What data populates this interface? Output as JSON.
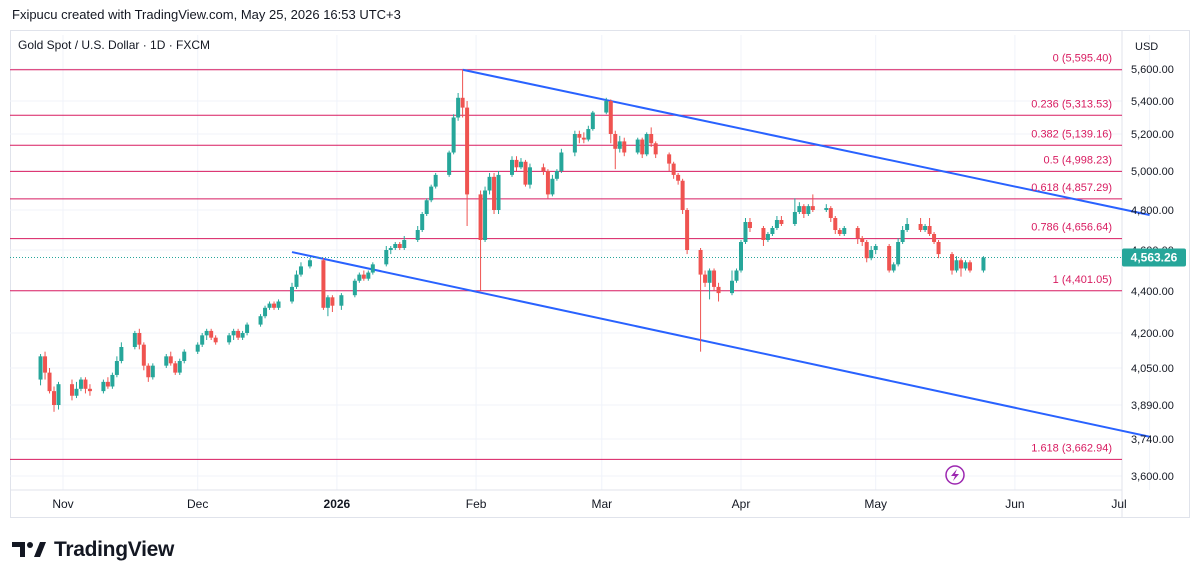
{
  "header": {
    "credit": "Fxipucu created with TradingView.com, May 25, 2026 16:53 UTC+3"
  },
  "footer": {
    "brand": "TradingView"
  },
  "colors": {
    "up": "#26a69a",
    "down": "#ef5350",
    "fib": "#d81b60",
    "trendline": "#2962ff",
    "grid": "#f0f3fa",
    "axis_text": "#131722",
    "price_badge": "#26a69a",
    "lightning": "#9c27b0"
  },
  "chart_data": {
    "type": "candlestick",
    "title": "Gold Spot / U.S. Dollar · 1D · FXCM",
    "currency": "USD",
    "last_price": "4,563.26",
    "x_ticks": [
      "Nov",
      "Dec",
      "2026",
      "Feb",
      "Mar",
      "Apr",
      "May",
      "Jun",
      "Jul"
    ],
    "y_ticks": [
      "5,600.00",
      "5,400.00",
      "5,200.00",
      "5,000.00",
      "4,800.00",
      "4,600.00",
      "4,400.00",
      "4,200.00",
      "4,050.00",
      "3,890.00",
      "3,740.00",
      "3,600.00"
    ],
    "fib_levels": [
      {
        "label": "0 (5,595.40)",
        "value": 5595.4
      },
      {
        "label": "0.236 (5,313.53)",
        "value": 5313.53
      },
      {
        "label": "0.382 (5,139.16)",
        "value": 5139.16
      },
      {
        "label": "0.5 (4,998.23)",
        "value": 4998.23
      },
      {
        "label": "0.618 (4,857.29)",
        "value": 4857.29
      },
      {
        "label": "0.786 (4,656.64)",
        "value": 4656.64
      },
      {
        "label": "1 (4,401.05)",
        "value": 4401.05
      },
      {
        "label": "1.618 (3,662.94)",
        "value": 3662.94
      }
    ],
    "trendlines": [
      {
        "name": "upper",
        "from": [
          "2026-01-29",
          5595.4
        ],
        "to": [
          "2026-07-01",
          4775
        ]
      },
      {
        "name": "lower",
        "from": [
          "2025-12-22",
          4590
        ],
        "to": [
          "2026-07-01",
          3750
        ]
      }
    ],
    "candles": [
      [
        "2025-10-27",
        4000,
        4100,
        3975,
        4110
      ],
      [
        "2025-10-28",
        4100,
        4030,
        4000,
        4120
      ],
      [
        "2025-10-29",
        4030,
        3950,
        3940,
        4050
      ],
      [
        "2025-10-30",
        3950,
        3890,
        3860,
        3970
      ],
      [
        "2025-10-31",
        3890,
        3980,
        3870,
        3990
      ],
      [
        "2025-11-03",
        3980,
        3930,
        3910,
        4000
      ],
      [
        "2025-11-04",
        3930,
        3960,
        3920,
        3990
      ],
      [
        "2025-11-05",
        3960,
        4000,
        3950,
        4010
      ],
      [
        "2025-11-06",
        4000,
        3960,
        3940,
        4010
      ],
      [
        "2025-11-07",
        3960,
        3950,
        3930,
        3980
      ],
      [
        "2025-11-10",
        3950,
        3990,
        3940,
        4000
      ],
      [
        "2025-11-11",
        3990,
        3970,
        3960,
        4010
      ],
      [
        "2025-11-12",
        3970,
        4020,
        3960,
        4030
      ],
      [
        "2025-11-13",
        4020,
        4080,
        4010,
        4100
      ],
      [
        "2025-11-14",
        4080,
        4140,
        4070,
        4160
      ],
      [
        "2025-11-17",
        4140,
        4200,
        4130,
        4210
      ],
      [
        "2025-11-18",
        4200,
        4150,
        4130,
        4220
      ],
      [
        "2025-11-19",
        4150,
        4060,
        4040,
        4160
      ],
      [
        "2025-11-20",
        4060,
        4010,
        3990,
        4070
      ],
      [
        "2025-11-21",
        4010,
        4060,
        4000,
        4070
      ],
      [
        "2025-11-24",
        4060,
        4100,
        4050,
        4110
      ],
      [
        "2025-11-25",
        4100,
        4070,
        4060,
        4120
      ],
      [
        "2025-11-26",
        4070,
        4030,
        4020,
        4080
      ],
      [
        "2025-11-27",
        4030,
        4080,
        4020,
        4090
      ],
      [
        "2025-11-28",
        4080,
        4120,
        4070,
        4130
      ],
      [
        "2025-12-01",
        4120,
        4150,
        4110,
        4160
      ],
      [
        "2025-12-02",
        4150,
        4190,
        4140,
        4200
      ],
      [
        "2025-12-03",
        4190,
        4210,
        4170,
        4220
      ],
      [
        "2025-12-04",
        4210,
        4180,
        4170,
        4220
      ],
      [
        "2025-12-05",
        4180,
        4160,
        4150,
        4190
      ],
      [
        "2025-12-08",
        4160,
        4190,
        4150,
        4200
      ],
      [
        "2025-12-09",
        4190,
        4210,
        4170,
        4220
      ],
      [
        "2025-12-10",
        4210,
        4180,
        4170,
        4220
      ],
      [
        "2025-12-11",
        4180,
        4200,
        4170,
        4210
      ],
      [
        "2025-12-12",
        4200,
        4240,
        4190,
        4250
      ],
      [
        "2025-12-15",
        4240,
        4280,
        4230,
        4290
      ],
      [
        "2025-12-16",
        4280,
        4320,
        4270,
        4330
      ],
      [
        "2025-12-17",
        4320,
        4340,
        4310,
        4350
      ],
      [
        "2025-12-18",
        4340,
        4320,
        4310,
        4350
      ],
      [
        "2025-12-19",
        4320,
        4350,
        4310,
        4360
      ],
      [
        "2025-12-22",
        4350,
        4420,
        4340,
        4440
      ],
      [
        "2025-12-23",
        4420,
        4480,
        4410,
        4500
      ],
      [
        "2025-12-24",
        4480,
        4520,
        4470,
        4540
      ],
      [
        "2025-12-26",
        4520,
        4550,
        4510,
        4560
      ],
      [
        "2025-12-29",
        4550,
        4320,
        4310,
        4560
      ],
      [
        "2025-12-30",
        4320,
        4370,
        4280,
        4380
      ],
      [
        "2025-12-31",
        4370,
        4330,
        4300,
        4380
      ],
      [
        "2026-01-02",
        4330,
        4380,
        4310,
        4390
      ],
      [
        "2026-01-05",
        4380,
        4450,
        4370,
        4460
      ],
      [
        "2026-01-06",
        4450,
        4480,
        4440,
        4490
      ],
      [
        "2026-01-07",
        4480,
        4460,
        4450,
        4500
      ],
      [
        "2026-01-08",
        4460,
        4490,
        4450,
        4500
      ],
      [
        "2026-01-09",
        4490,
        4530,
        4480,
        4540
      ],
      [
        "2026-01-12",
        4530,
        4600,
        4520,
        4620
      ],
      [
        "2026-01-13",
        4600,
        4610,
        4580,
        4620
      ],
      [
        "2026-01-14",
        4610,
        4630,
        4600,
        4640
      ],
      [
        "2026-01-15",
        4630,
        4610,
        4600,
        4640
      ],
      [
        "2026-01-16",
        4610,
        4650,
        4600,
        4670
      ],
      [
        "2026-01-19",
        4650,
        4700,
        4640,
        4720
      ],
      [
        "2026-01-20",
        4700,
        4780,
        4690,
        4790
      ],
      [
        "2026-01-21",
        4780,
        4850,
        4770,
        4860
      ],
      [
        "2026-01-22",
        4850,
        4920,
        4840,
        4930
      ],
      [
        "2026-01-23",
        4920,
        4980,
        4910,
        4990
      ],
      [
        "2026-01-26",
        4980,
        5100,
        4970,
        5110
      ],
      [
        "2026-01-27",
        5100,
        5300,
        5090,
        5320
      ],
      [
        "2026-01-28",
        5300,
        5420,
        5280,
        5450
      ],
      [
        "2026-01-29",
        5420,
        5360,
        5300,
        5595.4
      ],
      [
        "2026-01-30",
        5360,
        4880,
        4720,
        5400
      ],
      [
        "2026-02-02",
        4880,
        4650,
        4401.05,
        4900
      ],
      [
        "2026-02-03",
        4650,
        4900,
        4640,
        4920
      ],
      [
        "2026-02-04",
        4900,
        4970,
        4880,
        4990
      ],
      [
        "2026-02-05",
        4970,
        4800,
        4780,
        4990
      ],
      [
        "2026-02-06",
        4800,
        4980,
        4780,
        5000
      ],
      [
        "2026-02-09",
        4980,
        5060,
        4970,
        5080
      ],
      [
        "2026-02-10",
        5060,
        5020,
        5000,
        5080
      ],
      [
        "2026-02-11",
        5020,
        5050,
        5010,
        5070
      ],
      [
        "2026-02-12",
        5050,
        4930,
        4920,
        5060
      ],
      [
        "2026-02-13",
        4930,
        5020,
        4910,
        5040
      ],
      [
        "2026-02-16",
        5020,
        5000,
        4980,
        5040
      ],
      [
        "2026-02-17",
        5000,
        4880,
        4860,
        5010
      ],
      [
        "2026-02-18",
        4880,
        4960,
        4870,
        4980
      ],
      [
        "2026-02-19",
        4960,
        5000,
        4950,
        5010
      ],
      [
        "2026-02-20",
        5000,
        5100,
        4990,
        5120
      ],
      [
        "2026-02-23",
        5100,
        5200,
        5080,
        5220
      ],
      [
        "2026-02-24",
        5200,
        5180,
        5150,
        5220
      ],
      [
        "2026-02-25",
        5180,
        5170,
        5150,
        5210
      ],
      [
        "2026-02-26",
        5170,
        5230,
        5160,
        5250
      ],
      [
        "2026-02-27",
        5230,
        5330,
        5220,
        5340
      ],
      [
        "2026-03-02",
        5330,
        5400,
        5320,
        5420
      ],
      [
        "2026-03-03",
        5400,
        5200,
        5150,
        5410
      ],
      [
        "2026-03-04",
        5200,
        5120,
        5010,
        5220
      ],
      [
        "2026-03-05",
        5120,
        5160,
        5100,
        5190
      ],
      [
        "2026-03-06",
        5160,
        5100,
        5080,
        5180
      ],
      [
        "2026-03-09",
        5100,
        5170,
        5090,
        5180
      ],
      [
        "2026-03-10",
        5170,
        5090,
        5070,
        5180
      ],
      [
        "2026-03-11",
        5090,
        5200,
        5080,
        5210
      ],
      [
        "2026-03-12",
        5200,
        5150,
        5130,
        5240
      ],
      [
        "2026-03-13",
        5150,
        5090,
        5070,
        5160
      ],
      [
        "2026-03-16",
        5090,
        5040,
        5000,
        5100
      ],
      [
        "2026-03-17",
        5040,
        4980,
        4960,
        5050
      ],
      [
        "2026-03-18",
        4980,
        4950,
        4930,
        4990
      ],
      [
        "2026-03-19",
        4950,
        4800,
        4780,
        4960
      ],
      [
        "2026-03-20",
        4800,
        4600,
        4580,
        4810
      ],
      [
        "2026-03-23",
        4600,
        4480,
        4120,
        4610
      ],
      [
        "2026-03-24",
        4480,
        4440,
        4420,
        4500
      ],
      [
        "2026-03-25",
        4440,
        4500,
        4360,
        4510
      ],
      [
        "2026-03-26",
        4500,
        4420,
        4400,
        4510
      ],
      [
        "2026-03-27",
        4420,
        4390,
        4350,
        4440
      ],
      [
        "2026-03-30",
        4390,
        4450,
        4380,
        4500
      ],
      [
        "2026-03-31",
        4450,
        4500,
        4440,
        4510
      ],
      [
        "2026-04-01",
        4500,
        4640,
        4490,
        4650
      ],
      [
        "2026-04-02",
        4640,
        4740,
        4630,
        4760
      ],
      [
        "2026-04-03",
        4740,
        4710,
        4690,
        4760
      ],
      [
        "2026-04-06",
        4710,
        4650,
        4620,
        4720
      ],
      [
        "2026-04-07",
        4650,
        4680,
        4640,
        4690
      ],
      [
        "2026-04-08",
        4680,
        4710,
        4670,
        4720
      ],
      [
        "2026-04-09",
        4710,
        4750,
        4700,
        4770
      ],
      [
        "2026-04-10",
        4750,
        4730,
        4720,
        4770
      ],
      [
        "2026-04-13",
        4730,
        4790,
        4720,
        4860
      ],
      [
        "2026-04-14",
        4790,
        4820,
        4780,
        4840
      ],
      [
        "2026-04-15",
        4820,
        4780,
        4760,
        4830
      ],
      [
        "2026-04-16",
        4780,
        4820,
        4770,
        4830
      ],
      [
        "2026-04-17",
        4820,
        4800,
        4790,
        4880
      ],
      [
        "2026-04-20",
        4800,
        4810,
        4790,
        4830
      ],
      [
        "2026-04-21",
        4810,
        4760,
        4740,
        4820
      ],
      [
        "2026-04-22",
        4760,
        4700,
        4680,
        4770
      ],
      [
        "2026-04-23",
        4700,
        4680,
        4670,
        4710
      ],
      [
        "2026-04-24",
        4680,
        4710,
        4670,
        4720
      ],
      [
        "2026-04-27",
        4710,
        4660,
        4630,
        4720
      ],
      [
        "2026-04-28",
        4660,
        4640,
        4620,
        4670
      ],
      [
        "2026-04-29",
        4640,
        4560,
        4540,
        4650
      ],
      [
        "2026-04-30",
        4560,
        4600,
        4550,
        4620
      ],
      [
        "2026-05-01",
        4600,
        4620,
        4580,
        4630
      ],
      [
        "2026-05-04",
        4620,
        4500,
        4490,
        4630
      ],
      [
        "2026-05-05",
        4500,
        4530,
        4490,
        4540
      ],
      [
        "2026-05-06",
        4530,
        4640,
        4520,
        4660
      ],
      [
        "2026-05-07",
        4640,
        4700,
        4630,
        4720
      ],
      [
        "2026-05-08",
        4700,
        4730,
        4690,
        4760
      ],
      [
        "2026-05-11",
        4730,
        4700,
        4690,
        4760
      ],
      [
        "2026-05-12",
        4700,
        4720,
        4690,
        4730
      ],
      [
        "2026-05-13",
        4720,
        4680,
        4670,
        4760
      ],
      [
        "2026-05-14",
        4680,
        4640,
        4630,
        4690
      ],
      [
        "2026-05-15",
        4640,
        4580,
        4560,
        4650
      ],
      [
        "2026-05-18",
        4580,
        4500,
        4480,
        4590
      ],
      [
        "2026-05-19",
        4500,
        4550,
        4490,
        4570
      ],
      [
        "2026-05-20",
        4550,
        4510,
        4470,
        4560
      ],
      [
        "2026-05-21",
        4510,
        4540,
        4500,
        4550
      ],
      [
        "2026-05-22",
        4540,
        4500,
        4490,
        4550
      ],
      [
        "2026-05-25",
        4500,
        4563.26,
        4490,
        4570
      ]
    ]
  }
}
